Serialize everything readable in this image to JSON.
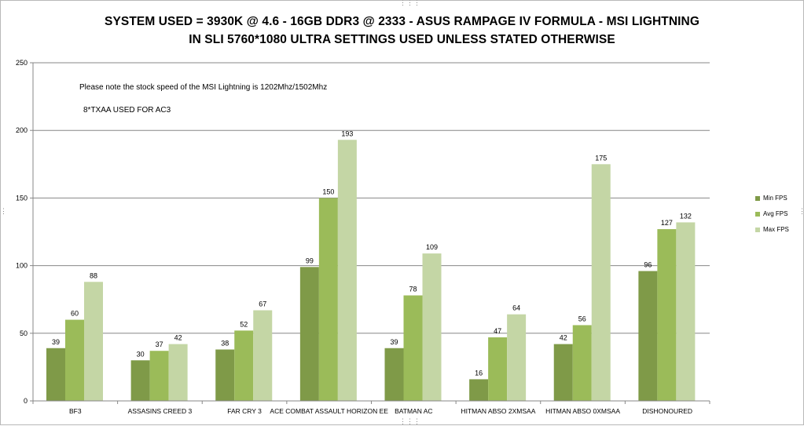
{
  "titles": {
    "line1": "SYSTEM USED = 3930K @ 4.6 - 16GB DDR3 @ 2333 - ASUS RAMPAGE IV FORMULA - MSI LIGHTNING",
    "line2": "IN SLI 5760*1080 ULTRA SETTINGS USED UNLESS STATED OTHERWISE"
  },
  "notes": {
    "note1": "Please note the stock speed of the MSI Lightning is 1202Mhz/1502Mhz",
    "note2": "8*TXAA USED FOR AC3"
  },
  "colors": {
    "min": "#7f9a48",
    "avg": "#9bbb59",
    "max": "#c4d6a5",
    "grid": "#878787",
    "axis": "#878787"
  },
  "chart_data": {
    "type": "bar",
    "title": "SYSTEM USED = 3930K @ 4.6 - 16GB DDR3 @ 2333 - ASUS RAMPAGE IV FORMULA - MSI LIGHTNING IN SLI 5760*1080 ULTRA SETTINGS USED UNLESS STATED OTHERWISE",
    "xlabel": "",
    "ylabel": "",
    "ylim": [
      0,
      250
    ],
    "yticks": [
      "0",
      "50",
      "100",
      "150",
      "200",
      "250"
    ],
    "grid": true,
    "legend_position": "right",
    "categories": [
      "BF3",
      "ASSASINS CREED 3",
      "FAR CRY 3",
      "ACE COMBAT ASSAULT HORIZON EE",
      "BATMAN AC",
      "HITMAN ABSO 2XMSAA",
      "HITMAN ABSO 0XMSAA",
      "DISHONOURED"
    ],
    "series": [
      {
        "name": "Min FPS",
        "values": [
          39,
          30,
          38,
          99,
          39,
          16,
          42,
          96
        ]
      },
      {
        "name": "Avg FPS",
        "values": [
          60,
          37,
          52,
          150,
          78,
          47,
          56,
          127
        ]
      },
      {
        "name": "Max FPS",
        "values": [
          88,
          42,
          67,
          193,
          109,
          64,
          175,
          132
        ]
      }
    ]
  }
}
